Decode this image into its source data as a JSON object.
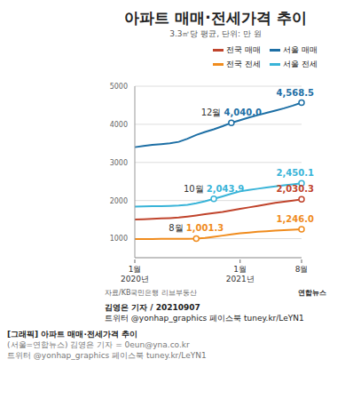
{
  "chart_data": {
    "type": "line",
    "title": "아파트 매매·전세가격 추이",
    "subtitle": "3.3㎡당 평균, 단위: 만 원",
    "source": "자료/KB국민은행 리브부동산",
    "credit": "연합뉴스",
    "categories": [
      "1월\n2020년",
      null,
      null,
      null,
      null,
      null,
      null,
      null,
      null,
      null,
      null,
      null,
      "1월\n2021년",
      null,
      null,
      null,
      null,
      null,
      null,
      "8월"
    ],
    "ylim": [
      500,
      5000
    ],
    "yticks": [
      1000,
      2000,
      3000,
      4000,
      5000
    ],
    "grid": true,
    "legend": "top right",
    "series": [
      {
        "name": "전국 매매",
        "color": "#c0442c",
        "values": [
          1500,
          1510,
          1520,
          1530,
          1540,
          1555,
          1580,
          1610,
          1640,
          1670,
          1700,
          1740,
          1780,
          1820,
          1860,
          1900,
          1940,
          1970,
          2000,
          2030.3
        ],
        "value_labels": [
          null,
          null,
          null,
          null,
          null,
          null,
          null,
          null,
          null,
          null,
          null,
          null,
          null,
          null,
          null,
          null,
          null,
          null,
          null,
          "2,030.3"
        ]
      },
      {
        "name": "서울 매매",
        "color": "#1d6fa5",
        "values": [
          3400,
          3430,
          3460,
          3480,
          3500,
          3540,
          3620,
          3720,
          3800,
          3870,
          3950,
          4040.0,
          4110,
          4180,
          4240,
          4300,
          4360,
          4420,
          4490,
          4568.5
        ],
        "value_labels": [
          null,
          null,
          null,
          null,
          null,
          null,
          null,
          null,
          null,
          null,
          null,
          "4,040.0",
          null,
          null,
          null,
          null,
          null,
          null,
          null,
          "4,568.5"
        ]
      },
      {
        "name": "전국 전세",
        "color": "#f08c1e",
        "values": [
          990,
          991,
          992,
          993,
          994,
          995,
          997,
          1001.3,
          1020,
          1050,
          1080,
          1110,
          1140,
          1160,
          1180,
          1195,
          1210,
          1222,
          1234,
          1246.0
        ],
        "value_labels": [
          null,
          null,
          null,
          null,
          null,
          null,
          null,
          "1,001.3",
          null,
          null,
          null,
          null,
          null,
          null,
          null,
          null,
          null,
          null,
          null,
          "1,246.0"
        ]
      },
      {
        "name": "서울 전세",
        "color": "#39b4d8",
        "values": [
          1840,
          1845,
          1850,
          1855,
          1860,
          1870,
          1890,
          1930,
          1980,
          2043.9,
          2110,
          2180,
          2240,
          2280,
          2310,
          2340,
          2370,
          2400,
          2425,
          2450.1
        ],
        "value_labels": [
          null,
          null,
          null,
          null,
          null,
          null,
          null,
          null,
          null,
          "2,043.9",
          null,
          null,
          null,
          null,
          null,
          null,
          null,
          null,
          null,
          "2,450.1"
        ]
      }
    ],
    "annotations": [
      {
        "series": "서울 매매",
        "index": 11,
        "text": "12월"
      },
      {
        "series": "서울 전세",
        "index": 9,
        "text": "10월"
      },
      {
        "series": "전국 전세",
        "index": 7,
        "text": "8월"
      }
    ]
  },
  "caption": {
    "byline": "김영은 기자 / 20210907",
    "social": "트위터 @yonhap_graphics  페이스북 tuney.kr/LeYN1",
    "headline": "[그래픽] 아파트 매매·전세가격 추이",
    "contact": "(서울=연합뉴스) 김영은 기자 = 0eun@yna.co.kr",
    "social2": "트위터 @yonhap_graphics 페이스북 tuney.kr/LeYN1"
  }
}
